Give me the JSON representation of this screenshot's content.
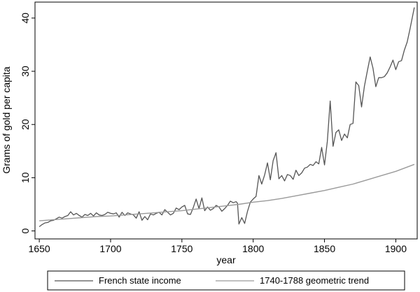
{
  "chart_data": {
    "type": "line",
    "title": "",
    "xlabel": "year",
    "ylabel": "Grams of gold per capita",
    "xlim": [
      1647,
      1915
    ],
    "ylim": [
      -1.5,
      43
    ],
    "xticks": [
      1650,
      1700,
      1750,
      1800,
      1850,
      1900
    ],
    "yticks": [
      0,
      10,
      20,
      30,
      40
    ],
    "grid": false,
    "legend": "bottom",
    "series": [
      {
        "name": "French state income",
        "color": "#555555",
        "x": [
          1650,
          1652,
          1654,
          1656,
          1658,
          1660,
          1662,
          1664,
          1666,
          1668,
          1670,
          1672,
          1674,
          1676,
          1678,
          1680,
          1682,
          1684,
          1686,
          1688,
          1690,
          1692,
          1694,
          1696,
          1698,
          1700,
          1702,
          1704,
          1706,
          1708,
          1710,
          1712,
          1714,
          1716,
          1718,
          1720,
          1722,
          1724,
          1726,
          1728,
          1730,
          1732,
          1734,
          1736,
          1738,
          1740,
          1742,
          1744,
          1746,
          1748,
          1750,
          1752,
          1754,
          1756,
          1758,
          1760,
          1762,
          1764,
          1766,
          1768,
          1770,
          1772,
          1774,
          1776,
          1778,
          1780,
          1782,
          1784,
          1786,
          1788,
          1789,
          1790,
          1792,
          1794,
          1796,
          1798,
          1800,
          1802,
          1804,
          1806,
          1808,
          1810,
          1812,
          1814,
          1816,
          1818,
          1820,
          1822,
          1824,
          1826,
          1828,
          1830,
          1832,
          1834,
          1836,
          1838,
          1840,
          1842,
          1844,
          1846,
          1848,
          1850,
          1852,
          1854,
          1856,
          1858,
          1860,
          1862,
          1864,
          1866,
          1868,
          1870,
          1872,
          1874,
          1876,
          1878,
          1880,
          1882,
          1884,
          1886,
          1888,
          1890,
          1892,
          1894,
          1896,
          1898,
          1900,
          1902,
          1904,
          1906,
          1908,
          1910,
          1913
        ],
        "values": [
          0.8,
          1.2,
          1.5,
          1.6,
          1.9,
          2.0,
          2.3,
          2.6,
          2.4,
          2.7,
          2.9,
          3.6,
          3.0,
          3.3,
          2.9,
          2.6,
          3.1,
          2.9,
          3.3,
          2.8,
          3.4,
          3.0,
          2.9,
          3.1,
          3.5,
          3.3,
          3.2,
          3.4,
          2.6,
          3.5,
          2.9,
          3.4,
          3.2,
          3.0,
          2.4,
          3.6,
          2.0,
          2.7,
          2.1,
          3.2,
          3.0,
          3.3,
          3.5,
          3.0,
          4.0,
          3.5,
          3.0,
          3.3,
          4.3,
          4.0,
          4.5,
          4.8,
          3.2,
          3.1,
          4.4,
          6.0,
          4.2,
          6.2,
          3.8,
          4.5,
          3.9,
          4.2,
          4.8,
          4.5,
          3.7,
          4.2,
          4.8,
          5.6,
          5.3,
          5.5,
          5.2,
          1.3,
          2.5,
          1.4,
          3.7,
          5.4,
          6.0,
          6.5,
          10.4,
          8.8,
          10.5,
          12.8,
          9.6,
          13.2,
          14.7,
          9.8,
          10.4,
          9.4,
          10.6,
          10.4,
          9.7,
          11.4,
          10.4,
          10.9,
          11.8,
          12.0,
          12.5,
          12.3,
          13.0,
          12.6,
          15.7,
          12.4,
          16.8,
          24.4,
          15.9,
          18.5,
          19.0,
          17.0,
          18.2,
          17.5,
          20.0,
          20.2,
          28.0,
          27.3,
          23.3,
          27.2,
          30.0,
          32.7,
          30.6,
          27.1,
          28.8,
          28.8,
          29.0,
          29.7,
          30.8,
          32.1,
          30.3,
          31.8,
          32.0,
          34.0,
          35.5,
          38.0,
          42.0
        ]
      },
      {
        "name": "1740-1788 geometric trend",
        "color": "#9a9a9a",
        "x": [
          1650,
          1660,
          1670,
          1680,
          1690,
          1700,
          1710,
          1720,
          1730,
          1740,
          1750,
          1760,
          1770,
          1780,
          1790,
          1800,
          1810,
          1820,
          1830,
          1840,
          1850,
          1860,
          1870,
          1880,
          1890,
          1900,
          1913
        ],
        "values": [
          1.9,
          2.1,
          2.3,
          2.5,
          2.7,
          2.8,
          3.0,
          3.2,
          3.4,
          3.6,
          3.8,
          4.1,
          4.4,
          4.7,
          5.0,
          5.4,
          5.7,
          6.1,
          6.6,
          7.1,
          7.6,
          8.2,
          8.8,
          9.6,
          10.4,
          11.2,
          12.5
        ]
      }
    ]
  }
}
